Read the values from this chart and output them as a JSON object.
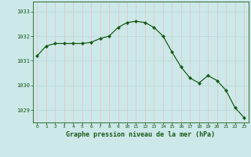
{
  "x": [
    0,
    1,
    2,
    3,
    4,
    5,
    6,
    7,
    8,
    9,
    10,
    11,
    12,
    13,
    14,
    15,
    16,
    17,
    18,
    19,
    20,
    21,
    22,
    23
  ],
  "y": [
    1031.2,
    1031.6,
    1031.7,
    1031.7,
    1031.7,
    1031.7,
    1031.75,
    1031.9,
    1032.0,
    1032.35,
    1032.55,
    1032.6,
    1032.55,
    1032.35,
    1032.0,
    1031.35,
    1030.75,
    1030.3,
    1030.1,
    1030.4,
    1030.2,
    1029.8,
    1029.1,
    1028.7
  ],
  "xlim": [
    -0.5,
    23.5
  ],
  "ylim": [
    1028.5,
    1033.4
  ],
  "yticks": [
    1029,
    1030,
    1031,
    1032,
    1033
  ],
  "xticks": [
    0,
    1,
    2,
    3,
    4,
    5,
    6,
    7,
    8,
    9,
    10,
    11,
    12,
    13,
    14,
    15,
    16,
    17,
    18,
    19,
    20,
    21,
    22,
    23
  ],
  "line_color": "#1a5c1a",
  "marker_color": "#1a5c1a",
  "bg_color": "#cce8e8",
  "grid_color_h": "#b8d8d8",
  "grid_color_v": "#e8c0c0",
  "xlabel": "Graphe pression niveau de la mer (hPa)",
  "xlabel_color": "#1a5c1a",
  "tick_color": "#1a5c1a",
  "axis_line_color": "#1a5c1a"
}
